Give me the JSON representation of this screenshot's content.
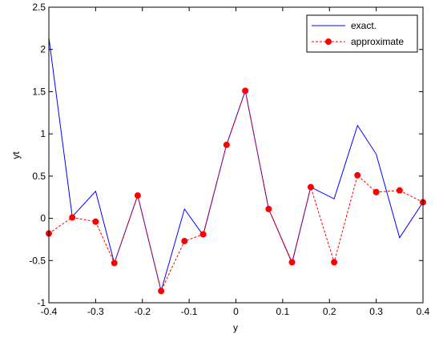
{
  "chart_data": {
    "type": "line",
    "title": "",
    "xlabel": "y",
    "ylabel": "yt",
    "xlim": [
      -0.4,
      0.4
    ],
    "ylim": [
      -1,
      2.5
    ],
    "xticks": [
      -0.4,
      -0.3,
      -0.2,
      -0.1,
      0,
      0.1,
      0.2,
      0.3,
      0.4
    ],
    "xtick_labels": [
      "-0.4",
      "-0.3",
      "-0.2",
      "-0.1",
      "0",
      "0.1",
      "0.2",
      "0.3",
      "0.4"
    ],
    "yticks": [
      -1,
      -0.5,
      0,
      0.5,
      1,
      1.5,
      2,
      2.5
    ],
    "ytick_labels": [
      "-1",
      "-0.5",
      "0",
      "0.5",
      "1",
      "1.5",
      "2",
      "2.5"
    ],
    "grid": false,
    "legend_position": "top-right",
    "series": [
      {
        "name": "exact.",
        "color": "#0000ff",
        "style": "solid",
        "marker": "none",
        "x": [
          -0.4,
          -0.35,
          -0.3,
          -0.26,
          -0.21,
          -0.16,
          -0.11,
          -0.07,
          -0.02,
          0.02,
          0.07,
          0.12,
          0.16,
          0.21,
          0.26,
          0.3,
          0.35,
          0.4
        ],
        "y": [
          2.14,
          0.02,
          0.32,
          -0.53,
          0.27,
          -0.86,
          0.11,
          -0.2,
          0.87,
          1.51,
          0.11,
          -0.53,
          0.37,
          0.23,
          1.1,
          0.76,
          -0.23,
          0.19
        ]
      },
      {
        "name": "approximate",
        "color": "#ff0000",
        "style": "dashed",
        "marker": "circle",
        "x": [
          -0.4,
          -0.35,
          -0.3,
          -0.26,
          -0.21,
          -0.16,
          -0.11,
          -0.07,
          -0.02,
          0.02,
          0.07,
          0.12,
          0.16,
          0.21,
          0.26,
          0.3,
          0.35,
          0.4
        ],
        "y": [
          -0.18,
          0.01,
          -0.04,
          -0.53,
          0.27,
          -0.86,
          -0.27,
          -0.19,
          0.87,
          1.51,
          0.11,
          -0.52,
          0.37,
          -0.52,
          0.51,
          0.31,
          0.33,
          0.19
        ]
      }
    ]
  }
}
